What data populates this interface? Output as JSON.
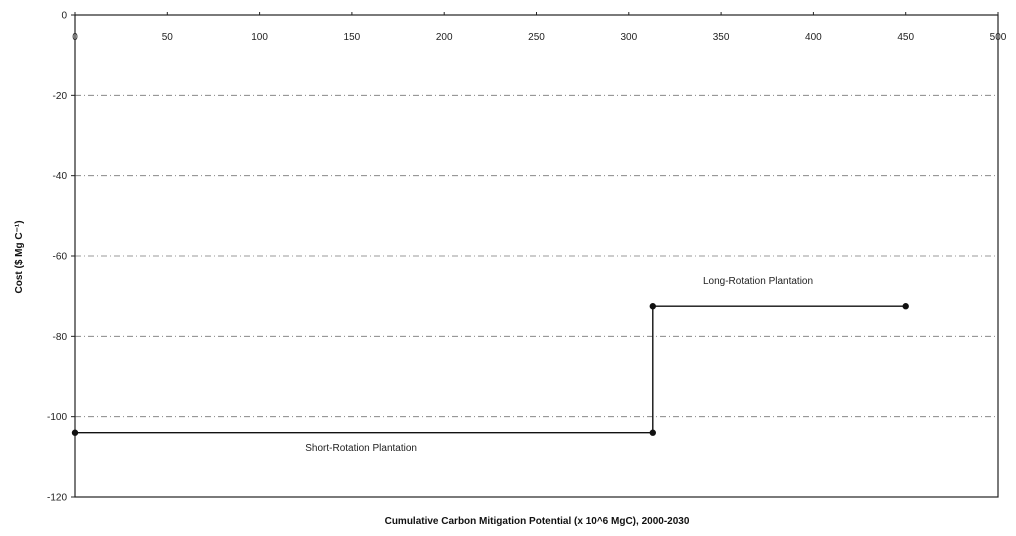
{
  "chart_data": {
    "type": "line",
    "xlabel": "Cumulative Carbon Mitigation Potential (x 10^6 MgC), 2000-2030",
    "ylabel": "Cost ($ Mg C⁻¹)",
    "xlim": [
      0,
      500
    ],
    "ylim": [
      -120,
      0
    ],
    "x_ticks": [
      0,
      50,
      100,
      150,
      200,
      250,
      300,
      350,
      400,
      450,
      500
    ],
    "y_ticks": [
      0,
      -20,
      -40,
      -60,
      -80,
      -100,
      -120
    ],
    "x_axis_position": "top",
    "grid": "horizontal dashed",
    "series": [
      {
        "x": [
          0,
          313,
          313,
          450
        ],
        "y": [
          -104,
          -104,
          -72.5,
          -72.5
        ],
        "color": "#111111"
      }
    ],
    "annotations": [
      {
        "text": "Short-Rotation Plantation",
        "x": 155,
        "y": -108.5
      },
      {
        "text": "Long-Rotation Plantation",
        "x": 370,
        "y": -67
      }
    ]
  }
}
